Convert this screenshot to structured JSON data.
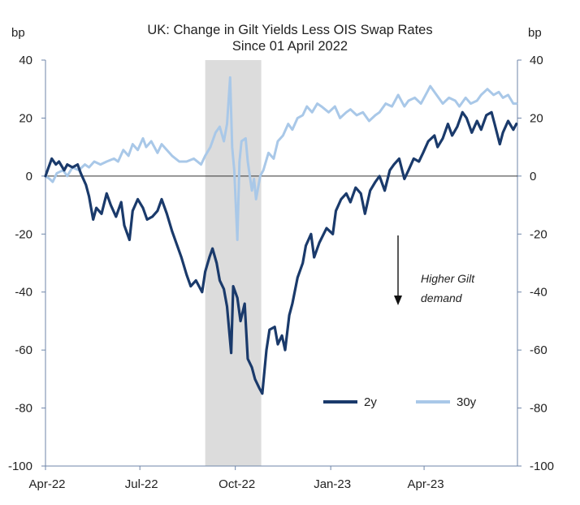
{
  "chart_data": {
    "type": "line",
    "title": "UK: Change  in Gilt Yields Less OIS Swap Rates",
    "subtitle": "Since 01 April 2022",
    "ylabel_left": "bp",
    "ylabel_right": "bp",
    "ylim": [
      -100,
      40
    ],
    "yticks": [
      40,
      20,
      0,
      -20,
      -40,
      -60,
      -80,
      -100
    ],
    "xlim": [
      "2022-04-01",
      "2023-06-30"
    ],
    "xticks": [
      {
        "label": "Apr-22",
        "date": "2022-04-01"
      },
      {
        "label": "Jul-22",
        "date": "2022-07-01"
      },
      {
        "label": "Oct-22",
        "date": "2022-10-01"
      },
      {
        "label": "Jan-23",
        "date": "2023-01-01"
      },
      {
        "label": "Apr-23",
        "date": "2023-04-01"
      }
    ],
    "shaded_region": {
      "start": "2022-09-02",
      "end": "2022-10-26",
      "color": "#dcdcdc"
    },
    "zero_line": true,
    "grid": false,
    "legend_position": "bottom-right",
    "annotation": {
      "lines": [
        "Higher Gilt",
        "demand"
      ],
      "arrow": "down"
    },
    "series": [
      {
        "name": "2y",
        "color": "#1a3a6b",
        "points": [
          [
            "2022-04-01",
            0
          ],
          [
            "2022-04-04",
            3
          ],
          [
            "2022-04-07",
            6
          ],
          [
            "2022-04-11",
            4
          ],
          [
            "2022-04-14",
            5
          ],
          [
            "2022-04-19",
            2
          ],
          [
            "2022-04-22",
            4
          ],
          [
            "2022-04-27",
            3
          ],
          [
            "2022-05-02",
            4
          ],
          [
            "2022-05-05",
            1
          ],
          [
            "2022-05-10",
            -3
          ],
          [
            "2022-05-13",
            -7
          ],
          [
            "2022-05-17",
            -15
          ],
          [
            "2022-05-20",
            -11
          ],
          [
            "2022-05-25",
            -13
          ],
          [
            "2022-05-30",
            -6
          ],
          [
            "2022-06-03",
            -10
          ],
          [
            "2022-06-08",
            -14
          ],
          [
            "2022-06-13",
            -9
          ],
          [
            "2022-06-16",
            -17
          ],
          [
            "2022-06-21",
            -22
          ],
          [
            "2022-06-24",
            -12
          ],
          [
            "2022-06-29",
            -8
          ],
          [
            "2022-07-04",
            -11
          ],
          [
            "2022-07-08",
            -15
          ],
          [
            "2022-07-13",
            -14
          ],
          [
            "2022-07-18",
            -12
          ],
          [
            "2022-07-22",
            -8
          ],
          [
            "2022-07-27",
            -13
          ],
          [
            "2022-08-01",
            -19
          ],
          [
            "2022-08-05",
            -23
          ],
          [
            "2022-08-10",
            -28
          ],
          [
            "2022-08-15",
            -34
          ],
          [
            "2022-08-19",
            -38
          ],
          [
            "2022-08-24",
            -36
          ],
          [
            "2022-08-30",
            -40
          ],
          [
            "2022-09-02",
            -33
          ],
          [
            "2022-09-06",
            -28
          ],
          [
            "2022-09-09",
            -25
          ],
          [
            "2022-09-13",
            -30
          ],
          [
            "2022-09-16",
            -36
          ],
          [
            "2022-09-20",
            -39
          ],
          [
            "2022-09-23",
            -45
          ],
          [
            "2022-09-27",
            -61
          ],
          [
            "2022-09-29",
            -38
          ],
          [
            "2022-10-03",
            -42
          ],
          [
            "2022-10-06",
            -50
          ],
          [
            "2022-10-10",
            -44
          ],
          [
            "2022-10-13",
            -63
          ],
          [
            "2022-10-17",
            -66
          ],
          [
            "2022-10-20",
            -70
          ],
          [
            "2022-10-24",
            -73
          ],
          [
            "2022-10-27",
            -75
          ],
          [
            "2022-10-31",
            -60
          ],
          [
            "2022-11-03",
            -53
          ],
          [
            "2022-11-08",
            -52
          ],
          [
            "2022-11-11",
            -58
          ],
          [
            "2022-11-15",
            -55
          ],
          [
            "2022-11-18",
            -60
          ],
          [
            "2022-11-22",
            -48
          ],
          [
            "2022-11-25",
            -44
          ],
          [
            "2022-11-30",
            -35
          ],
          [
            "2022-12-05",
            -30
          ],
          [
            "2022-12-08",
            -24
          ],
          [
            "2022-12-13",
            -20
          ],
          [
            "2022-12-16",
            -28
          ],
          [
            "2022-12-21",
            -23
          ],
          [
            "2022-12-28",
            -18
          ],
          [
            "2023-01-03",
            -20
          ],
          [
            "2023-01-06",
            -12
          ],
          [
            "2023-01-11",
            -8
          ],
          [
            "2023-01-16",
            -6
          ],
          [
            "2023-01-20",
            -9
          ],
          [
            "2023-01-25",
            -4
          ],
          [
            "2023-01-30",
            -6
          ],
          [
            "2023-02-03",
            -13
          ],
          [
            "2023-02-08",
            -5
          ],
          [
            "2023-02-13",
            -2
          ],
          [
            "2023-02-17",
            0
          ],
          [
            "2023-02-22",
            -5
          ],
          [
            "2023-02-27",
            2
          ],
          [
            "2023-03-03",
            4
          ],
          [
            "2023-03-08",
            6
          ],
          [
            "2023-03-13",
            -1
          ],
          [
            "2023-03-17",
            2
          ],
          [
            "2023-03-22",
            6
          ],
          [
            "2023-03-27",
            5
          ],
          [
            "2023-03-31",
            8
          ],
          [
            "2023-04-05",
            12
          ],
          [
            "2023-04-11",
            14
          ],
          [
            "2023-04-14",
            10
          ],
          [
            "2023-04-19",
            13
          ],
          [
            "2023-04-24",
            18
          ],
          [
            "2023-04-28",
            14
          ],
          [
            "2023-05-03",
            17
          ],
          [
            "2023-05-08",
            22
          ],
          [
            "2023-05-12",
            20
          ],
          [
            "2023-05-17",
            15
          ],
          [
            "2023-05-22",
            19
          ],
          [
            "2023-05-26",
            16
          ],
          [
            "2023-05-31",
            21
          ],
          [
            "2023-06-05",
            22
          ],
          [
            "2023-06-08",
            18
          ],
          [
            "2023-06-13",
            11
          ],
          [
            "2023-06-16",
            15
          ],
          [
            "2023-06-21",
            19
          ],
          [
            "2023-06-26",
            16
          ],
          [
            "2023-06-29",
            18
          ]
        ]
      },
      {
        "name": "30y",
        "color": "#a9c8e8",
        "points": [
          [
            "2022-04-01",
            0
          ],
          [
            "2022-04-05",
            -1
          ],
          [
            "2022-04-08",
            -2
          ],
          [
            "2022-04-12",
            1
          ],
          [
            "2022-04-18",
            2
          ],
          [
            "2022-04-22",
            0
          ],
          [
            "2022-04-27",
            3
          ],
          [
            "2022-05-03",
            2
          ],
          [
            "2022-05-09",
            4
          ],
          [
            "2022-05-13",
            3
          ],
          [
            "2022-05-18",
            5
          ],
          [
            "2022-05-24",
            4
          ],
          [
            "2022-05-30",
            5
          ],
          [
            "2022-06-06",
            6
          ],
          [
            "2022-06-10",
            5
          ],
          [
            "2022-06-15",
            9
          ],
          [
            "2022-06-20",
            7
          ],
          [
            "2022-06-24",
            11
          ],
          [
            "2022-06-29",
            9
          ],
          [
            "2022-07-04",
            13
          ],
          [
            "2022-07-07",
            10
          ],
          [
            "2022-07-12",
            12
          ],
          [
            "2022-07-18",
            8
          ],
          [
            "2022-07-22",
            11
          ],
          [
            "2022-07-27",
            9
          ],
          [
            "2022-08-01",
            7
          ],
          [
            "2022-08-08",
            5
          ],
          [
            "2022-08-15",
            5
          ],
          [
            "2022-08-22",
            6
          ],
          [
            "2022-08-29",
            4
          ],
          [
            "2022-09-02",
            7
          ],
          [
            "2022-09-07",
            10
          ],
          [
            "2022-09-12",
            15
          ],
          [
            "2022-09-16",
            17
          ],
          [
            "2022-09-20",
            12
          ],
          [
            "2022-09-23",
            18
          ],
          [
            "2022-09-26",
            34
          ],
          [
            "2022-09-28",
            10
          ],
          [
            "2022-09-30",
            2
          ],
          [
            "2022-10-03",
            -22
          ],
          [
            "2022-10-05",
            5
          ],
          [
            "2022-10-07",
            12
          ],
          [
            "2022-10-11",
            13
          ],
          [
            "2022-10-13",
            5
          ],
          [
            "2022-10-17",
            -5
          ],
          [
            "2022-10-19",
            -1
          ],
          [
            "2022-10-21",
            -8
          ],
          [
            "2022-10-25",
            0
          ],
          [
            "2022-10-28",
            2
          ],
          [
            "2022-11-02",
            8
          ],
          [
            "2022-11-07",
            6
          ],
          [
            "2022-11-11",
            12
          ],
          [
            "2022-11-16",
            14
          ],
          [
            "2022-11-21",
            18
          ],
          [
            "2022-11-25",
            16
          ],
          [
            "2022-11-30",
            20
          ],
          [
            "2022-12-05",
            21
          ],
          [
            "2022-12-09",
            24
          ],
          [
            "2022-12-14",
            22
          ],
          [
            "2022-12-19",
            25
          ],
          [
            "2022-12-23",
            24
          ],
          [
            "2022-12-30",
            22
          ],
          [
            "2023-01-05",
            24
          ],
          [
            "2023-01-10",
            20
          ],
          [
            "2023-01-16",
            22
          ],
          [
            "2023-01-20",
            23
          ],
          [
            "2023-01-26",
            21
          ],
          [
            "2023-02-01",
            22
          ],
          [
            "2023-02-07",
            19
          ],
          [
            "2023-02-13",
            21
          ],
          [
            "2023-02-17",
            22
          ],
          [
            "2023-02-23",
            25
          ],
          [
            "2023-03-01",
            24
          ],
          [
            "2023-03-07",
            28
          ],
          [
            "2023-03-13",
            24
          ],
          [
            "2023-03-17",
            26
          ],
          [
            "2023-03-23",
            27
          ],
          [
            "2023-03-29",
            25
          ],
          [
            "2023-04-04",
            29
          ],
          [
            "2023-04-07",
            31
          ],
          [
            "2023-04-13",
            28
          ],
          [
            "2023-04-19",
            25
          ],
          [
            "2023-04-25",
            27
          ],
          [
            "2023-05-01",
            26
          ],
          [
            "2023-05-05",
            24
          ],
          [
            "2023-05-11",
            27
          ],
          [
            "2023-05-16",
            25
          ],
          [
            "2023-05-22",
            26
          ],
          [
            "2023-05-26",
            28
          ],
          [
            "2023-06-01",
            30
          ],
          [
            "2023-06-07",
            28
          ],
          [
            "2023-06-12",
            29
          ],
          [
            "2023-06-16",
            27
          ],
          [
            "2023-06-21",
            28
          ],
          [
            "2023-06-26",
            25
          ],
          [
            "2023-06-29",
            25
          ]
        ]
      }
    ]
  }
}
